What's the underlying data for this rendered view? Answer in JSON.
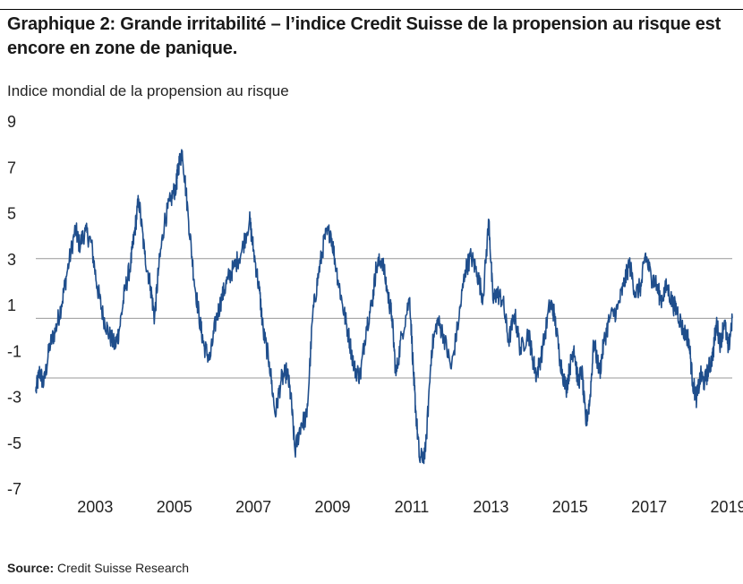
{
  "title": "Graphique 2: Grande irritabilité – l’indice Credit Suisse de la propension au risque est encore en zone de panique.",
  "source": {
    "label": "Source:",
    "text": " Credit Suisse Research"
  },
  "colors": {
    "line": "#1f4e8c",
    "grid": "#999999",
    "text": "#222222"
  },
  "chart_data": {
    "type": "line",
    "title": "",
    "ylabel": "Indice mondial de la propension au risque",
    "xlabel": "",
    "ylim": [
      -7,
      9
    ],
    "xlim": [
      2002.0,
      2019.6
    ],
    "y_ticks": [
      9,
      7,
      5,
      3,
      1,
      -1,
      -3,
      -5,
      -7
    ],
    "x_ticks": [
      2003,
      2005,
      2007,
      2009,
      2011,
      2013,
      2015,
      2017,
      2019
    ],
    "reference_lines": [
      3,
      0.4,
      -2.2
    ],
    "series": [
      {
        "name": "",
        "x": [
          2002.0,
          2002.1,
          2002.2,
          2002.35,
          2002.5,
          2002.65,
          2002.8,
          2003.0,
          2003.1,
          2003.25,
          2003.4,
          2003.55,
          2003.7,
          2003.85,
          2004.0,
          2004.1,
          2004.25,
          2004.4,
          2004.5,
          2004.6,
          2004.75,
          2004.9,
          2005.0,
          2005.1,
          2005.25,
          2005.4,
          2005.55,
          2005.6,
          2005.7,
          2005.85,
          2006.0,
          2006.15,
          2006.25,
          2006.4,
          2006.55,
          2006.7,
          2006.85,
          2007.0,
          2007.2,
          2007.4,
          2007.5,
          2007.65,
          2007.75,
          2007.9,
          2008.05,
          2008.2,
          2008.35,
          2008.45,
          2008.55,
          2008.7,
          2008.85,
          2009.0,
          2009.15,
          2009.3,
          2009.45,
          2009.6,
          2009.75,
          2009.9,
          2010.05,
          2010.2,
          2010.35,
          2010.5,
          2010.6,
          2010.75,
          2010.9,
          2011.0,
          2011.1,
          2011.25,
          2011.45,
          2011.55,
          2011.6,
          2011.7,
          2011.85,
          2012.0,
          2012.15,
          2012.3,
          2012.5,
          2012.7,
          2012.85,
          2013.0,
          2013.15,
          2013.3,
          2013.45,
          2013.55,
          2013.65,
          2013.8,
          2013.95,
          2014.1,
          2014.25,
          2014.45,
          2014.55,
          2014.65,
          2014.8,
          2015.0,
          2015.1,
          2015.25,
          2015.4,
          2015.5,
          2015.6,
          2015.7,
          2015.8,
          2015.9,
          2016.0,
          2016.1,
          2016.25,
          2016.35,
          2016.5,
          2016.7,
          2016.85,
          2017.0,
          2017.15,
          2017.3,
          2017.4,
          2017.55,
          2017.65,
          2017.8,
          2017.95,
          2018.1,
          2018.2,
          2018.35,
          2018.5,
          2018.6,
          2018.7,
          2018.8,
          2018.9,
          2019.0,
          2019.1,
          2019.2,
          2019.3,
          2019.4,
          2019.5,
          2019.6
        ],
        "values": [
          -2.8,
          -1.9,
          -2.5,
          -0.8,
          -0.1,
          1.0,
          2.5,
          4.3,
          3.6,
          4.2,
          3.7,
          1.8,
          0.5,
          -0.3,
          -0.8,
          -0.2,
          1.6,
          2.8,
          4.2,
          5.6,
          3.2,
          1.8,
          0.4,
          2.5,
          4.6,
          5.5,
          6.2,
          7.0,
          7.7,
          4.9,
          2.1,
          0.2,
          -0.8,
          -1.4,
          0.3,
          1.3,
          2.1,
          2.6,
          3.3,
          4.7,
          3.4,
          1.6,
          -0.2,
          -1.5,
          -3.8,
          -2.3,
          -1.9,
          -3.1,
          -5.4,
          -4.2,
          -3.9,
          0.6,
          2.4,
          3.9,
          4.2,
          2.5,
          1.0,
          -0.3,
          -1.8,
          -2.1,
          0.0,
          1.1,
          2.6,
          3.0,
          1.4,
          0.5,
          -2.1,
          -0.3,
          1.3,
          -2.2,
          -3.6,
          -5.8,
          -5.4,
          -1.0,
          0.3,
          -0.3,
          -1.8,
          0.5,
          2.5,
          3.1,
          2.4,
          1.3,
          4.7,
          1.2,
          1.5,
          1.2,
          -0.6,
          0.6,
          -1.0,
          -0.2,
          -1.3,
          -2.1,
          -1.0,
          1.1,
          0.6,
          -1.4,
          -2.7,
          -1.7,
          -0.8,
          -2.4,
          -1.9,
          -4.2,
          -3.2,
          -0.6,
          -2.0,
          -0.7,
          0.4,
          0.8,
          1.8,
          2.8,
          1.5,
          1.8,
          3.2,
          2.2,
          2.0,
          1.2,
          1.8,
          1.0,
          0.8,
          -0.1,
          -0.5,
          -2.4,
          -3.1,
          -2.1,
          -2.4,
          -1.8,
          -1.3,
          0.2,
          -0.7,
          0.3,
          -1.0,
          0.4
        ]
      }
    ]
  }
}
